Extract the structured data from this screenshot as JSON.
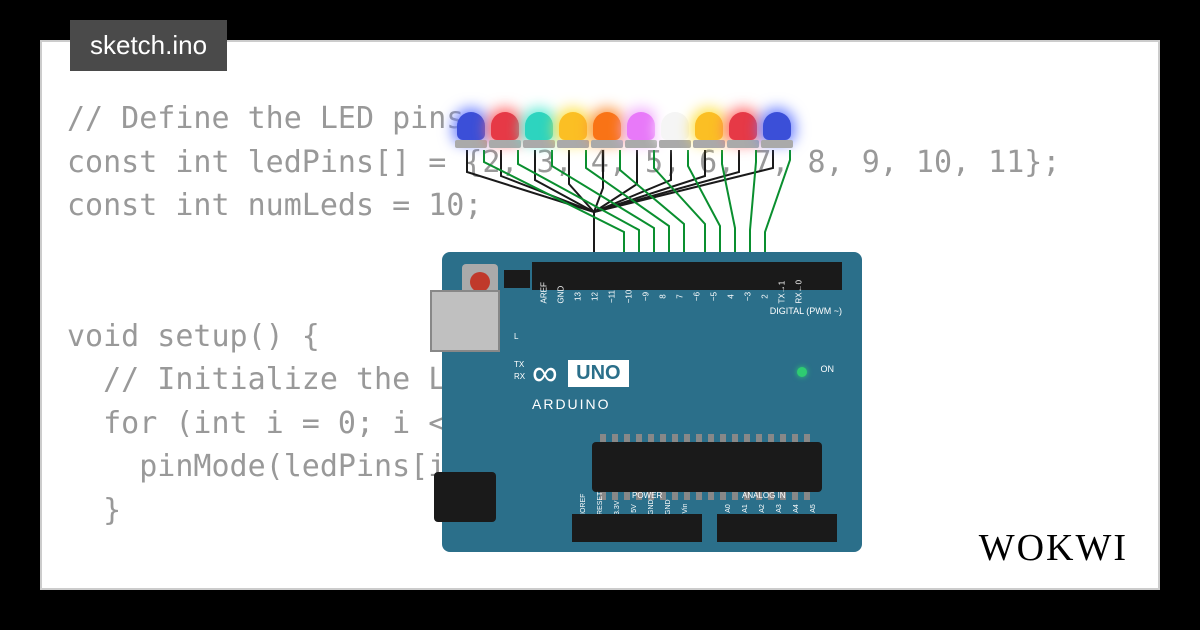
{
  "tab": {
    "filename": "sketch.ino"
  },
  "brand": "WOKWI",
  "code": {
    "text": "// Define the LED pins\nconst int ledPins[] = {2, 3, 4, 5, 6, 7, 8, 9, 10, 11};\nconst int numLeds = 10;\n\n\nvoid setup() {\n  // Initialize the LED pins as outputs\n  for (int i = 0; i < numLeds; i++) {\n    pinMode(ledPins[i], OUTPUT);\n  }\n"
  },
  "leds": [
    {
      "color": "#3b4fd8",
      "glow": "#6b7fff"
    },
    {
      "color": "#e63946",
      "glow": "#ff6b6b"
    },
    {
      "color": "#2dd4bf",
      "glow": "#5eead4"
    },
    {
      "color": "#fbbf24",
      "glow": "#fde047"
    },
    {
      "color": "#f97316",
      "glow": "#fb923c"
    },
    {
      "color": "#e879f9",
      "glow": "#f0abfc"
    },
    {
      "color": "#f5f5f5",
      "glow": "#ffffff"
    },
    {
      "color": "#fbbf24",
      "glow": "#fde047"
    },
    {
      "color": "#e63946",
      "glow": "#ff6b6b"
    },
    {
      "color": "#3b4fd8",
      "glow": "#6b7fff"
    }
  ],
  "board": {
    "name": "UNO",
    "brand": "ARDUINO",
    "on": "ON",
    "digital": "DIGITAL (PWM ~)",
    "power": "POWER",
    "analog": "ANALOG IN",
    "side": {
      "L": "L",
      "TX": "TX",
      "RX": "RX"
    },
    "topPins": [
      "AREF",
      "GND",
      "13",
      "12",
      "~11",
      "~10",
      "~9",
      "8",
      "7",
      "~6",
      "~5",
      "4",
      "~3",
      "2",
      "TX→1",
      "RX←0"
    ],
    "botPinsPower": [
      "IOREF",
      "RESET",
      "3.3V",
      "5V",
      "GND",
      "GND",
      "Vin"
    ],
    "botPinsAnalog": [
      "A0",
      "A1",
      "A2",
      "A3",
      "A4",
      "A5"
    ]
  },
  "wires": {
    "gnd_color": "#1a1a1a",
    "sig_color": "#0a8f2f"
  }
}
